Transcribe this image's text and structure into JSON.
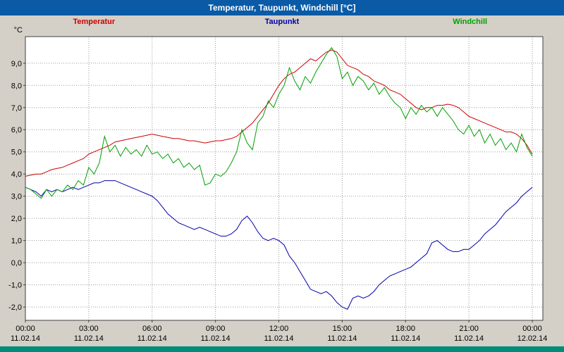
{
  "window": {
    "title": "Temperatur, Taupunkt, Windchill [°C]"
  },
  "legend": {
    "items": [
      {
        "label": "Temperatur",
        "color": "#cc0000"
      },
      {
        "label": "Taupunkt",
        "color": "#0000aa"
      },
      {
        "label": "Windchill",
        "color": "#00a000"
      }
    ]
  },
  "colors": {
    "titlebar": "#0a5aa6",
    "titlebar_text": "#ffffff",
    "window_bg": "#d4d0c8",
    "plot_bg": "#ffffff",
    "grid": "#9a9a9a",
    "axis": "#404040",
    "bottom_bar": "#008c7a"
  },
  "chart_data": {
    "type": "line",
    "title": "Temperatur, Taupunkt, Windchill [°C]",
    "y_axis_unit": "°C",
    "grid": "dotted",
    "legend_position": "top",
    "xlim": [
      0,
      24.5
    ],
    "ylim": [
      -2.6,
      10.2
    ],
    "x_start_hour": 0,
    "x_interval_hours": 0.25,
    "yticks": {
      "values": [
        9,
        8,
        7,
        6,
        5,
        4,
        3,
        2,
        1,
        0,
        -1,
        -2
      ],
      "labels": [
        "9,0",
        "8,0",
        "7,0",
        "6,0",
        "5,0",
        "4,0",
        "3,0",
        "2,0",
        "1,0",
        "0,0",
        "-1,0",
        "-2,0"
      ]
    },
    "xticks": {
      "values": [
        0,
        3,
        6,
        9,
        12,
        15,
        18,
        21,
        24
      ],
      "time_labels": [
        "00:00",
        "03:00",
        "06:00",
        "09:00",
        "12:00",
        "15:00",
        "18:00",
        "21:00",
        "00:00"
      ],
      "date_labels": [
        "11.02.14",
        "11.02.14",
        "11.02.14",
        "11.02.14",
        "11.02.14",
        "11.02.14",
        "11.02.14",
        "11.02.14",
        "12.02.14"
      ]
    },
    "series": [
      {
        "name": "Temperatur",
        "color": "#cc0000",
        "values": [
          3.9,
          3.95,
          4.0,
          4.0,
          4.1,
          4.2,
          4.25,
          4.3,
          4.4,
          4.5,
          4.6,
          4.7,
          4.9,
          5.0,
          5.1,
          5.2,
          5.3,
          5.45,
          5.5,
          5.55,
          5.6,
          5.65,
          5.7,
          5.75,
          5.8,
          5.75,
          5.7,
          5.65,
          5.6,
          5.6,
          5.55,
          5.5,
          5.5,
          5.45,
          5.4,
          5.45,
          5.5,
          5.5,
          5.55,
          5.6,
          5.7,
          5.9,
          6.1,
          6.3,
          6.6,
          6.9,
          7.2,
          7.6,
          8.0,
          8.3,
          8.5,
          8.6,
          8.8,
          9.0,
          9.2,
          9.1,
          9.3,
          9.5,
          9.6,
          9.5,
          9.2,
          8.9,
          8.8,
          8.7,
          8.5,
          8.4,
          8.2,
          8.1,
          8.0,
          7.8,
          7.7,
          7.6,
          7.4,
          7.2,
          7.0,
          6.9,
          7.0,
          7.0,
          7.1,
          7.1,
          7.15,
          7.1,
          7.0,
          6.8,
          6.6,
          6.5,
          6.4,
          6.3,
          6.2,
          6.1,
          6.0,
          5.9,
          5.9,
          5.8,
          5.6,
          5.3,
          4.9
        ]
      },
      {
        "name": "Taupunkt",
        "color": "#0000aa",
        "values": [
          3.4,
          3.3,
          3.2,
          3.0,
          3.3,
          3.2,
          3.3,
          3.2,
          3.3,
          3.4,
          3.3,
          3.4,
          3.5,
          3.6,
          3.6,
          3.7,
          3.7,
          3.7,
          3.6,
          3.5,
          3.4,
          3.3,
          3.2,
          3.1,
          3.0,
          2.8,
          2.5,
          2.2,
          2.0,
          1.8,
          1.7,
          1.6,
          1.5,
          1.6,
          1.5,
          1.4,
          1.3,
          1.2,
          1.2,
          1.3,
          1.5,
          1.9,
          2.1,
          1.8,
          1.4,
          1.1,
          1.0,
          1.1,
          1.0,
          0.8,
          0.3,
          0.0,
          -0.4,
          -0.8,
          -1.2,
          -1.3,
          -1.4,
          -1.3,
          -1.5,
          -1.8,
          -2.0,
          -2.1,
          -1.6,
          -1.5,
          -1.6,
          -1.5,
          -1.3,
          -1.0,
          -0.8,
          -0.6,
          -0.5,
          -0.4,
          -0.3,
          -0.2,
          0.0,
          0.2,
          0.4,
          0.9,
          1.0,
          0.8,
          0.6,
          0.5,
          0.5,
          0.6,
          0.6,
          0.8,
          1.0,
          1.3,
          1.5,
          1.7,
          2.0,
          2.3,
          2.5,
          2.7,
          3.0,
          3.2,
          3.4
        ]
      },
      {
        "name": "Windchill",
        "color": "#00a000",
        "values": [
          3.4,
          3.3,
          3.1,
          2.9,
          3.3,
          3.0,
          3.3,
          3.2,
          3.5,
          3.3,
          3.7,
          3.5,
          4.3,
          4.0,
          4.5,
          5.7,
          5.0,
          5.3,
          4.8,
          5.2,
          4.9,
          5.1,
          4.8,
          5.3,
          4.9,
          5.0,
          4.7,
          4.9,
          4.5,
          4.7,
          4.3,
          4.5,
          4.2,
          4.4,
          3.5,
          3.6,
          4.0,
          3.9,
          4.1,
          4.5,
          5.0,
          6.0,
          5.4,
          5.1,
          6.3,
          6.6,
          7.3,
          7.0,
          7.6,
          8.0,
          8.8,
          8.2,
          7.8,
          8.4,
          8.1,
          8.6,
          9.0,
          9.4,
          9.7,
          9.3,
          8.3,
          8.6,
          8.0,
          8.4,
          8.2,
          7.8,
          8.1,
          7.6,
          7.9,
          7.5,
          7.2,
          7.0,
          6.5,
          7.0,
          6.7,
          7.1,
          6.8,
          7.0,
          6.6,
          7.0,
          6.7,
          6.4,
          6.0,
          5.8,
          6.2,
          5.7,
          6.0,
          5.4,
          5.8,
          5.3,
          5.6,
          5.1,
          5.4,
          5.0,
          5.8,
          5.2,
          4.8
        ]
      }
    ]
  }
}
